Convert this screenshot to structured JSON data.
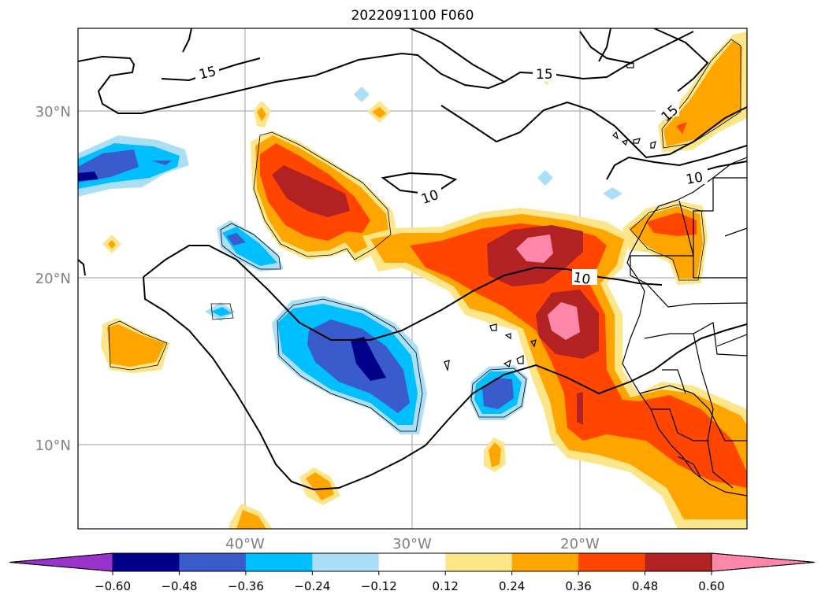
{
  "title": "2022091100 F060",
  "map": {
    "lat_labels": [
      "30°N",
      "20°N",
      "10°N"
    ],
    "lon_labels": [
      "40°W",
      "30°W",
      "20°W"
    ],
    "contour_labels": [
      "15",
      "15",
      "15",
      "10",
      "10",
      "10"
    ]
  },
  "colorbar": {
    "ticks": [
      "−0.60",
      "−0.48",
      "−0.36",
      "−0.24",
      "−0.12",
      "0.12",
      "0.24",
      "0.36",
      "0.48",
      "0.60"
    ],
    "colors": [
      "#9933cc",
      "#00008b",
      "#3a5bcc",
      "#00bfff",
      "#aadff7",
      "#ffffff",
      "#fde68a",
      "#ffa500",
      "#ff4500",
      "#b22222",
      "#ff88aa"
    ],
    "extend": "both"
  }
}
